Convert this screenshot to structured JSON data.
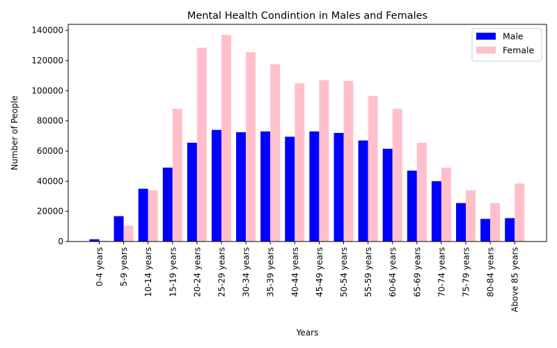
{
  "chart_data": {
    "type": "bar",
    "title": "Mental Health Condintion in Males and Females",
    "xlabel": "Years",
    "ylabel": "Number of People",
    "ylim": [
      0,
      144000
    ],
    "yticks": [
      0,
      20000,
      40000,
      60000,
      80000,
      100000,
      120000,
      140000
    ],
    "ytick_labels": [
      "0",
      "20000",
      "40000",
      "60000",
      "80000",
      "100000",
      "120000",
      "140000"
    ],
    "grid": false,
    "legend_position": "top-right",
    "categories": [
      "0-4 years",
      "5-9 years",
      "10-14 years",
      "15-19 years",
      "20-24 years",
      "25-29 years",
      "30-34 years",
      "35-39 years",
      "40-44 years",
      "45-49 years",
      "50-54 years",
      "55-59 years",
      "60-64 years",
      "65-69 years",
      "70-74 years",
      "75-79 years",
      "80-84 years",
      "Above 85 years"
    ],
    "series": [
      {
        "name": "Male",
        "color": "#0000ff",
        "values": [
          1500,
          16800,
          35000,
          49000,
          65500,
          74000,
          72500,
          73000,
          69500,
          73000,
          72000,
          67000,
          61500,
          47000,
          40000,
          25500,
          15000,
          15500
        ]
      },
      {
        "name": "Female",
        "color": "#ffc0cb",
        "values": [
          500,
          10500,
          34000,
          88000,
          128500,
          137000,
          125500,
          117500,
          105000,
          107000,
          106500,
          96500,
          88000,
          65500,
          49000,
          34000,
          25500,
          38500
        ]
      }
    ]
  }
}
